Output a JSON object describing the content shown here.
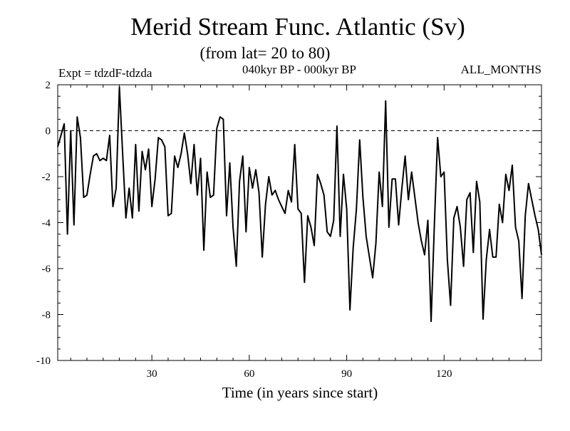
{
  "chart_data": {
    "type": "line",
    "title": "Merid Stream Func. Atlantic (Sv)",
    "subtitle": "(from lat= 20 to 80)",
    "left_label": "Expt = tdzdF-tdzda",
    "center_label": "040kyr BP - 000kyr BP",
    "right_label": "ALL_MONTHS",
    "xlabel": "Time (in years since start)",
    "ylabel": "",
    "xlim": [
      1,
      150
    ],
    "ylim": [
      -10,
      2
    ],
    "x_ticks": [
      "30",
      "60",
      "90",
      "120"
    ],
    "y_ticks": [
      "2",
      "0",
      "-2",
      "-4",
      "-6",
      "-8",
      "-10"
    ],
    "reference_line": 0,
    "series": [
      {
        "name": "Merid Stream Func.",
        "values": [
          -0.7,
          -0.2,
          0.3,
          -4.5,
          0.0,
          -4.1,
          0.6,
          -0.3,
          -2.9,
          -2.8,
          -1.9,
          -1.1,
          -1.0,
          -1.3,
          -1.2,
          -1.3,
          -0.2,
          -3.3,
          -2.5,
          1.9,
          -1.0,
          -3.8,
          -2.5,
          -3.8,
          -0.6,
          -3.5,
          -0.9,
          -1.7,
          -0.8,
          -3.3,
          -2.1,
          -0.3,
          -0.4,
          -0.7,
          -3.7,
          -3.6,
          -1.1,
          -1.6,
          -1.0,
          -0.1,
          -1.0,
          -2.3,
          -0.6,
          -2.8,
          -1.2,
          -5.2,
          -1.8,
          -2.9,
          -2.8,
          0.1,
          0.6,
          0.5,
          -3.7,
          -1.4,
          -4.2,
          -5.9,
          -2.2,
          -1.1,
          -4.4,
          -1.6,
          -2.5,
          -1.7,
          -2.7,
          -5.5,
          -3.2,
          -2.0,
          -2.8,
          -2.6,
          -3.0,
          -3.3,
          -3.6,
          -2.6,
          -3.1,
          -0.6,
          -3.4,
          -3.6,
          -6.6,
          -3.7,
          -4.2,
          -5.0,
          -1.9,
          -2.3,
          -2.8,
          -4.4,
          -4.6,
          -3.9,
          0.2,
          -4.6,
          -1.9,
          -3.4,
          -7.8,
          -5.1,
          -3.4,
          -0.4,
          -2.9,
          -4.6,
          -5.5,
          -6.4,
          -4.9,
          -1.8,
          -3.3,
          1.3,
          -4.2,
          -2.1,
          -2.1,
          -4.1,
          -2.5,
          -1.1,
          -3.0,
          -1.8,
          -2.9,
          -4.0,
          -4.8,
          -5.4,
          -3.9,
          -8.3,
          -4.1,
          -0.3,
          -2.0,
          -1.8,
          -5.6,
          -7.6,
          -3.8,
          -3.3,
          -4.2,
          -5.9,
          -3.0,
          -2.7,
          -5.3,
          -2.2,
          -3.1,
          -8.2,
          -5.6,
          -4.3,
          -5.5,
          -5.5,
          -3.2,
          -4.0,
          -1.9,
          -2.6,
          -1.5,
          -4.2,
          -4.8,
          -7.3,
          -3.7,
          -2.3,
          -3.0,
          -3.7,
          -4.3,
          -5.4
        ]
      }
    ]
  }
}
